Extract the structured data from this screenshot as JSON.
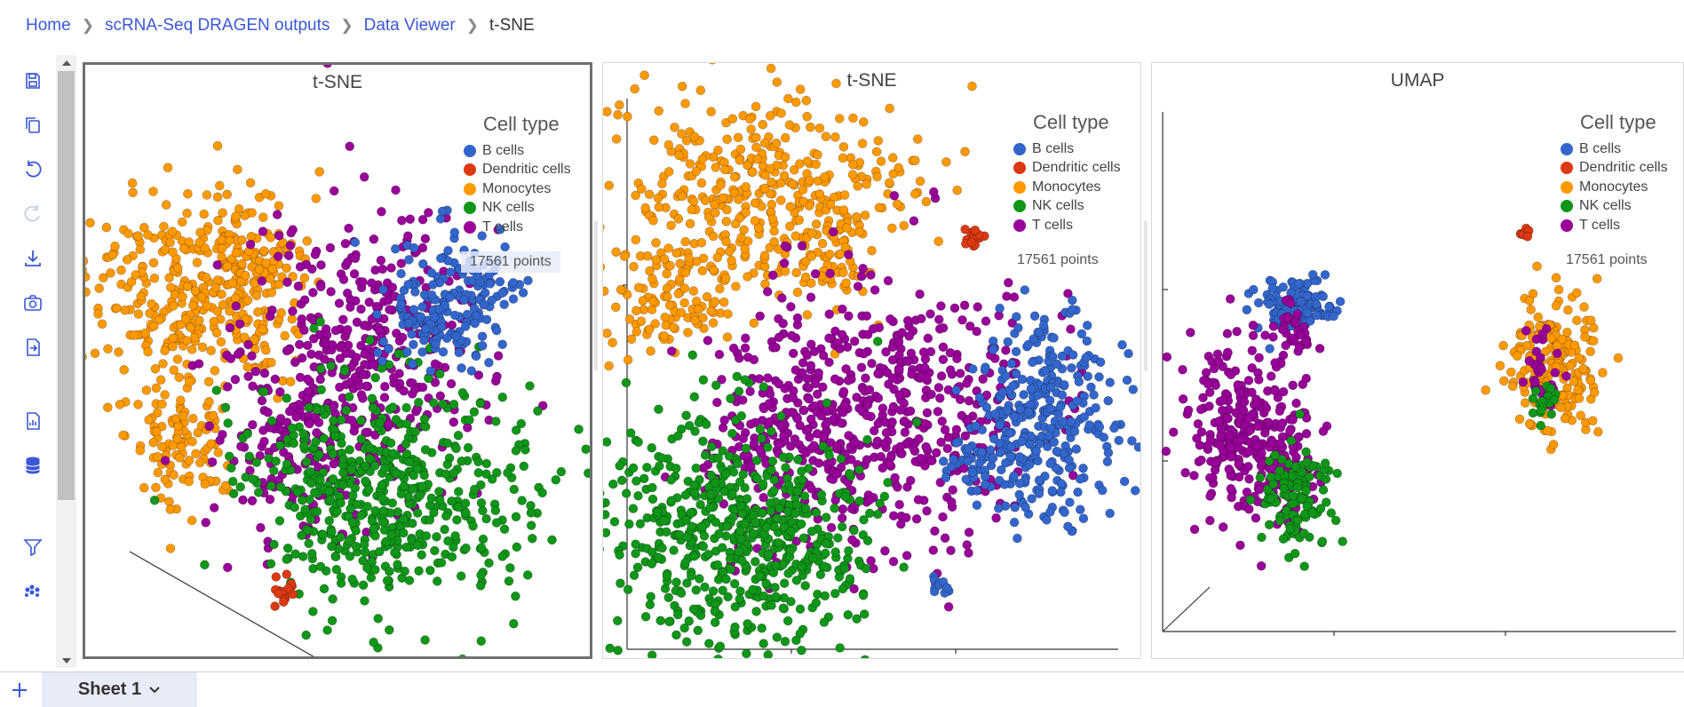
{
  "breadcrumb": {
    "items": [
      "Home",
      "scRNA-Seq DRAGEN outputs",
      "Data Viewer"
    ],
    "current": "t-SNE"
  },
  "toolbar": {
    "icons": [
      "save-icon",
      "copy-icon",
      "undo-icon",
      "redo-icon",
      "download-icon",
      "camera-icon",
      "export-icon",
      "report-icon",
      "database-icon",
      "filter-icon",
      "cluster-icon"
    ]
  },
  "legend": {
    "title": "Cell type",
    "items": [
      {
        "label": "B cells",
        "color": "#3366cc"
      },
      {
        "label": "Dendritic cells",
        "color": "#dc3912"
      },
      {
        "label": "Monocytes",
        "color": "#ff9900"
      },
      {
        "label": "NK cells",
        "color": "#109618"
      },
      {
        "label": "T cells",
        "color": "#990099"
      }
    ]
  },
  "panels": [
    {
      "title": "t-SNE",
      "points_label": "17561 points"
    },
    {
      "title": "t-SNE",
      "points_label": "17561 points"
    },
    {
      "title": "UMAP",
      "points_label": "17561 points"
    }
  ],
  "sheets": {
    "tabs": [
      "Sheet 1"
    ]
  }
}
